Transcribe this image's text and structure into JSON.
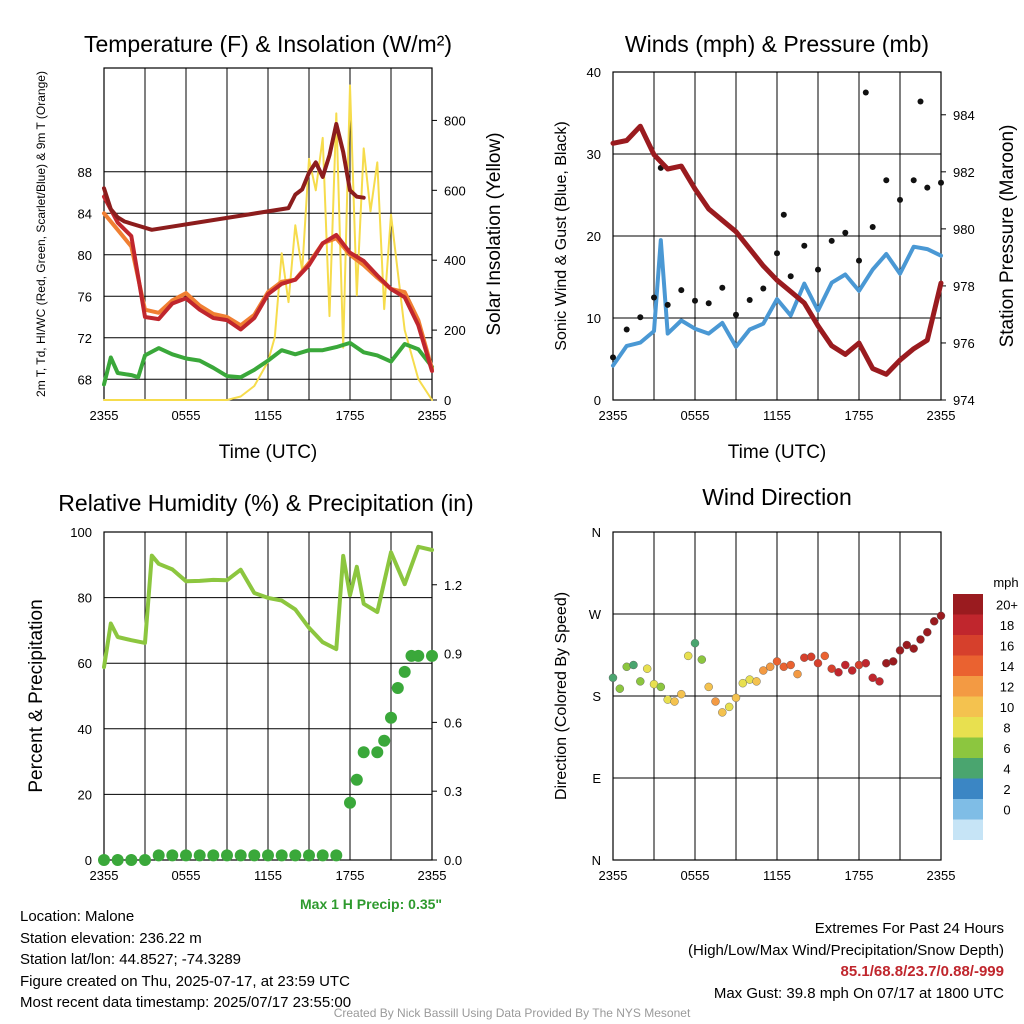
{
  "chart_data": [
    {
      "id": "temp",
      "type": "line",
      "title": "Temperature (F) & Insolation (W/m²)",
      "xlabel": "Time (UTC)",
      "ylabel": "2m T, Td, HI/WC (Red, Green, Scarlet/Blue) & 9m T (Orange)",
      "ylabel_right": "Solar Insolation (Yellow)",
      "x_ticks": [
        "2355",
        "0555",
        "1155",
        "1755",
        "2355"
      ],
      "ylim": [
        66,
        98
      ],
      "yticks": [
        68,
        72,
        76,
        80,
        84,
        88
      ],
      "ylim_right": [
        0,
        950
      ],
      "yticks_right": [
        0,
        200,
        400,
        600,
        800
      ],
      "grid": true,
      "series": [
        {
          "name": "2m T",
          "color": "#c0262d",
          "axis": "left",
          "x": [
            0,
            1,
            2,
            3,
            4,
            5,
            6,
            7,
            8,
            9,
            10,
            11,
            12,
            13,
            14,
            15,
            16,
            17,
            18,
            19,
            20,
            21,
            22,
            23,
            24
          ],
          "values": [
            85.6,
            83.1,
            81.8,
            74.0,
            73.8,
            75.3,
            75.8,
            74.7,
            73.9,
            73.7,
            72.8,
            73.9,
            76.2,
            77.2,
            77.6,
            79.0,
            81.1,
            81.9,
            80.2,
            79.4,
            78.0,
            76.7,
            75.9,
            73.2,
            68.8
          ]
        },
        {
          "name": "9m T",
          "color": "#f07f32",
          "axis": "left",
          "x": [
            0,
            1,
            2,
            3,
            4,
            5,
            6,
            7,
            8,
            9,
            10,
            11,
            12,
            13,
            14,
            15,
            16,
            17,
            18,
            19,
            20,
            21,
            22,
            23,
            24
          ],
          "values": [
            84.0,
            82.4,
            80.8,
            74.7,
            74.4,
            75.6,
            76.3,
            75.1,
            74.3,
            74.0,
            73.2,
            74.2,
            76.4,
            77.4,
            77.6,
            79.2,
            81.1,
            81.6,
            80.0,
            79.0,
            77.8,
            76.7,
            76.4,
            73.7,
            69.0
          ]
        },
        {
          "name": "HI/WC",
          "color": "#8c1d1d",
          "axis": "left",
          "x": [
            0,
            0.5,
            1,
            1.5,
            2,
            3.5,
            13.5,
            14,
            14.5,
            15,
            15.5,
            16,
            16.5,
            17,
            17.5,
            18,
            18.5,
            19
          ],
          "values": [
            86.4,
            84.4,
            83.6,
            83.2,
            83.0,
            82.4,
            84.5,
            85.8,
            86.3,
            87.9,
            88.9,
            87.5,
            89.6,
            92.6,
            89.9,
            86.2,
            85.6,
            85.5
          ]
        },
        {
          "name": "2m Td",
          "color": "#3aa83a",
          "axis": "left",
          "x": [
            0,
            0.5,
            1,
            2,
            2.5,
            3,
            4,
            5,
            6,
            7,
            8,
            9,
            10,
            11,
            12,
            13,
            14,
            15,
            16,
            17,
            18,
            19,
            20,
            21,
            22,
            23,
            24
          ],
          "values": [
            67.5,
            70.1,
            68.6,
            68.4,
            68.2,
            70.3,
            71.0,
            70.4,
            70.0,
            69.8,
            69.1,
            68.3,
            68.2,
            68.9,
            69.8,
            70.8,
            70.4,
            70.8,
            70.8,
            71.1,
            71.5,
            70.6,
            70.3,
            69.7,
            71.4,
            70.9,
            69.2
          ]
        },
        {
          "name": "Solar Insolation",
          "color": "#f6dc4c",
          "axis": "right",
          "x": [
            0,
            9,
            10,
            11,
            12,
            12.5,
            13,
            13.5,
            14,
            14.5,
            15,
            15.5,
            16,
            16.5,
            17,
            17.5,
            18,
            18.5,
            19,
            19.5,
            20,
            20.5,
            21,
            22,
            23,
            24
          ],
          "values": [
            0,
            0,
            10,
            40,
            110,
            180,
            420,
            280,
            500,
            370,
            690,
            600,
            750,
            240,
            820,
            150,
            900,
            300,
            720,
            540,
            680,
            260,
            530,
            200,
            60,
            0
          ]
        }
      ]
    },
    {
      "id": "winds",
      "type": "scatter",
      "title": "Winds (mph) & Pressure (mb)",
      "xlabel": "Time (UTC)",
      "ylabel": "Sonic Wind & Gust (Blue, Black)",
      "ylabel_right": "Station Pressure (Maroon)",
      "x_ticks": [
        "2355",
        "0555",
        "1155",
        "1755",
        "2355"
      ],
      "ylim": [
        0,
        40
      ],
      "yticks": [
        0,
        10,
        20,
        30,
        40
      ],
      "ylim_right": [
        974,
        985.5
      ],
      "yticks_right": [
        974,
        976,
        978,
        980,
        982,
        984
      ],
      "grid": true,
      "series": [
        {
          "name": "Sonic Wind",
          "color": "#4a98d4",
          "mode": "line",
          "axis": "left",
          "x": [
            0,
            1,
            2,
            3,
            3.5,
            4,
            5,
            6,
            7,
            8,
            9,
            10,
            11,
            12,
            13,
            14,
            15,
            16,
            17,
            18,
            19,
            20,
            21,
            22,
            23,
            24
          ],
          "values": [
            4.2,
            6.6,
            7.0,
            8.4,
            19.5,
            8.1,
            9.7,
            8.7,
            8.1,
            9.4,
            6.5,
            8.6,
            9.3,
            12.3,
            10.3,
            14.2,
            10.9,
            14.3,
            15.3,
            13.3,
            15.9,
            17.8,
            15.4,
            18.7,
            18.4,
            17.6
          ]
        },
        {
          "name": "Gust",
          "color": "#111111",
          "mode": "dots",
          "axis": "left",
          "x": [
            0,
            1,
            2,
            3,
            3.5,
            4,
            5,
            6,
            7,
            8,
            9,
            10,
            11,
            12,
            12.5,
            13,
            14,
            15,
            16,
            17,
            18,
            18.5,
            19,
            20,
            21,
            22,
            22.5,
            23,
            24
          ],
          "values": [
            5.2,
            8.6,
            10.1,
            12.5,
            28.3,
            11.6,
            13.4,
            12.1,
            11.8,
            13.7,
            10.4,
            12.2,
            13.6,
            17.9,
            22.6,
            15.1,
            18.8,
            15.9,
            19.4,
            20.4,
            17.0,
            37.5,
            21.1,
            26.8,
            24.4,
            26.8,
            36.4,
            25.9,
            26.5
          ]
        },
        {
          "name": "Station Pressure",
          "color": "#9a1b1f",
          "mode": "line",
          "axis": "right",
          "x": [
            0,
            1,
            2,
            3,
            4,
            5,
            6,
            7,
            8,
            9,
            10,
            11,
            12,
            13,
            14,
            15,
            16,
            17,
            18,
            19,
            20,
            21,
            22,
            23,
            24
          ],
          "values": [
            983.0,
            983.1,
            983.6,
            982.6,
            982.1,
            982.2,
            981.4,
            980.7,
            980.3,
            979.9,
            979.3,
            978.7,
            978.2,
            977.8,
            977.4,
            976.6,
            975.9,
            975.6,
            976.0,
            975.1,
            974.9,
            975.4,
            975.8,
            976.1,
            978.1
          ]
        }
      ]
    },
    {
      "id": "rh",
      "type": "line",
      "title": "Relative Humidity (%) & Precipitation (in)",
      "ylabel": "Percent & Precipitation",
      "x_ticks": [
        "2355",
        "0555",
        "1155",
        "1755",
        "2355"
      ],
      "ylim": [
        0,
        100
      ],
      "yticks": [
        0,
        20,
        40,
        60,
        80,
        100
      ],
      "ylim_right": [
        0,
        1.43
      ],
      "yticks_right": [
        "0.0",
        "0.3",
        "0.6",
        "0.9",
        "1.2"
      ],
      "grid": true,
      "annotation": "Max 1 H Precip: 0.35\"",
      "series": [
        {
          "name": "Relative Humidity",
          "color": "#8cc63f",
          "axis": "left",
          "x": [
            0,
            0.5,
            1,
            2,
            3,
            3.5,
            4,
            5,
            6,
            7,
            8,
            9,
            10,
            11,
            12,
            13,
            14,
            15,
            16,
            17,
            17.5,
            18,
            18.5,
            19,
            20,
            21,
            22,
            23,
            24
          ],
          "values": [
            58.8,
            72.1,
            68.0,
            67.0,
            66.2,
            92.8,
            90.3,
            88.6,
            85.0,
            85.1,
            85.4,
            85.3,
            88.5,
            81.4,
            79.9,
            79.1,
            76.4,
            70.8,
            66.4,
            64.3,
            92.7,
            80.7,
            89.4,
            78.1,
            75.6,
            93.8,
            84.1,
            95.5,
            94.5
          ]
        },
        {
          "name": "Precipitation",
          "color": "#3aa83a",
          "mode": "dots",
          "axis": "right",
          "x": [
            0,
            1,
            2,
            3,
            4,
            5,
            6,
            7,
            8,
            9,
            10,
            11,
            12,
            13,
            14,
            15,
            16,
            17,
            18,
            18.5,
            19,
            20,
            20.5,
            21,
            21.5,
            22,
            22.5,
            23,
            24
          ],
          "values": [
            0.0,
            0.0,
            0.0,
            0.0,
            0.02,
            0.02,
            0.02,
            0.02,
            0.02,
            0.02,
            0.02,
            0.02,
            0.02,
            0.02,
            0.02,
            0.02,
            0.02,
            0.02,
            0.25,
            0.35,
            0.47,
            0.47,
            0.52,
            0.62,
            0.75,
            0.82,
            0.89,
            0.89,
            0.89
          ]
        }
      ]
    },
    {
      "id": "wdir",
      "type": "scatter",
      "title": "Wind Direction",
      "ylabel": "Direction (Colored By Speed)",
      "x_ticks": [
        "2355",
        "0555",
        "1155",
        "1755",
        "2355"
      ],
      "ylim": [
        0,
        360
      ],
      "ytick_labels": [
        "N",
        "E",
        "S",
        "W",
        "N"
      ],
      "yticks": [
        0,
        90,
        180,
        270,
        360
      ],
      "grid": true,
      "colorbar": {
        "title": "mph",
        "labels": [
          "20+",
          "18",
          "16",
          "14",
          "12",
          "10",
          "8",
          "6",
          "4",
          "2",
          "0"
        ],
        "colors": [
          "#9a1b1f",
          "#c0262d",
          "#d6402c",
          "#ea6230",
          "#f39a43",
          "#f4c24f",
          "#e8e04f",
          "#8cc63f",
          "#4aa56f",
          "#3b86c4",
          "#7fbde6",
          "#c6e4f6"
        ]
      },
      "points": {
        "x": [
          0,
          0.5,
          1,
          1.5,
          2,
          2.5,
          3,
          3.5,
          4,
          4.5,
          5,
          5.5,
          6,
          6.5,
          7,
          7.5,
          8,
          8.5,
          9,
          9.5,
          10,
          10.5,
          11,
          11.5,
          12,
          12.5,
          13,
          13.5,
          14,
          14.5,
          15,
          15.5,
          16,
          16.5,
          17,
          17.5,
          18,
          18.5,
          19,
          19.5,
          20,
          20.5,
          21,
          21.5,
          22,
          22.5,
          23,
          23.5,
          24
        ],
        "dir": [
          200,
          188,
          212,
          214,
          196,
          210,
          193,
          190,
          176,
          174,
          182,
          224,
          238,
          220,
          190,
          174,
          162,
          168,
          178,
          194,
          198,
          196,
          208,
          212,
          218,
          212,
          214,
          204,
          222,
          223,
          216,
          224,
          210,
          206,
          214,
          208,
          214,
          216,
          200,
          196,
          216,
          218,
          230,
          236,
          232,
          242,
          250,
          262,
          268
        ],
        "speed": [
          4,
          5,
          6,
          4,
          6,
          8,
          7,
          6,
          8,
          10,
          9,
          8,
          4,
          5,
          10,
          12,
          9,
          8,
          10,
          8,
          7,
          9,
          11,
          12,
          13,
          14,
          13,
          12,
          15,
          16,
          15,
          13,
          16,
          17,
          18,
          17,
          16,
          18,
          17,
          17,
          19,
          20,
          19,
          20,
          20,
          20,
          20,
          20,
          20
        ]
      }
    }
  ],
  "info_left": [
    "Location: Malone",
    "Station elevation: 236.22 m",
    "Station lat/lon: 44.8527; -74.3289",
    "Figure created on Thu, 2025-07-17, at 23:59 UTC",
    "Most recent data timestamp: 2025/07/17 23:55:00"
  ],
  "info_right": {
    "title": "Extremes For Past 24 Hours",
    "subtitle": "(High/Low/Max Wind/Precipitation/Snow Depth)",
    "extremes": "85.1/68.8/23.7/0.88/-999",
    "max_gust": "Max Gust: 39.8 mph On 07/17 at 1800 UTC"
  },
  "credit": "Created By Nick Bassill Using Data Provided By The NYS Mesonet"
}
